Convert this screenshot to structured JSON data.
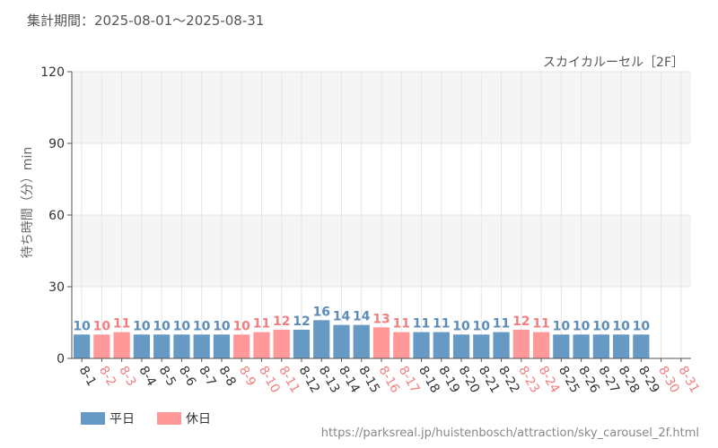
{
  "header": {
    "period_label": "集計期間：2025-08-01～2025-08-31"
  },
  "footer": {
    "source_url": "https://parksreal.jp/huistenbosch/attraction/sky_carousel_2f.html"
  },
  "colors": {
    "weekday": "#6699c4",
    "holiday": "#ff9999",
    "weekday_text": "#5b8db8",
    "holiday_text": "#f07f7f",
    "band": "#f5f5f5",
    "grid": "#e6e6e6",
    "axis": "#555555"
  },
  "chart_data": {
    "type": "bar",
    "title": "スカイカルーセル［2F］",
    "ylabel": "待ち時間（分）min",
    "xlabel": "",
    "ylim": [
      0,
      120
    ],
    "yticks": [
      0,
      30,
      60,
      90,
      120
    ],
    "grid": true,
    "legend_position": "bottom-left",
    "legend": [
      {
        "key": "weekday",
        "label": "平日"
      },
      {
        "key": "holiday",
        "label": "休日"
      }
    ],
    "categories": [
      "8-1",
      "8-2",
      "8-3",
      "8-4",
      "8-5",
      "8-6",
      "8-7",
      "8-8",
      "8-9",
      "8-10",
      "8-11",
      "8-12",
      "8-13",
      "8-14",
      "8-15",
      "8-16",
      "8-17",
      "8-18",
      "8-19",
      "8-20",
      "8-21",
      "8-22",
      "8-23",
      "8-24",
      "8-25",
      "8-26",
      "8-27",
      "8-28",
      "8-29",
      "8-30",
      "8-31"
    ],
    "values": [
      10,
      10,
      11,
      10,
      10,
      10,
      10,
      10,
      10,
      11,
      12,
      12,
      16,
      14,
      14,
      13,
      11,
      11,
      11,
      10,
      10,
      11,
      12,
      11,
      10,
      10,
      10,
      10,
      10,
      null,
      null
    ],
    "day_type": [
      "weekday",
      "holiday",
      "holiday",
      "weekday",
      "weekday",
      "weekday",
      "weekday",
      "weekday",
      "holiday",
      "holiday",
      "holiday",
      "weekday",
      "weekday",
      "weekday",
      "weekday",
      "holiday",
      "holiday",
      "weekday",
      "weekday",
      "weekday",
      "weekday",
      "weekday",
      "holiday",
      "holiday",
      "weekday",
      "weekday",
      "weekday",
      "weekday",
      "weekday",
      "holiday",
      "holiday"
    ]
  }
}
